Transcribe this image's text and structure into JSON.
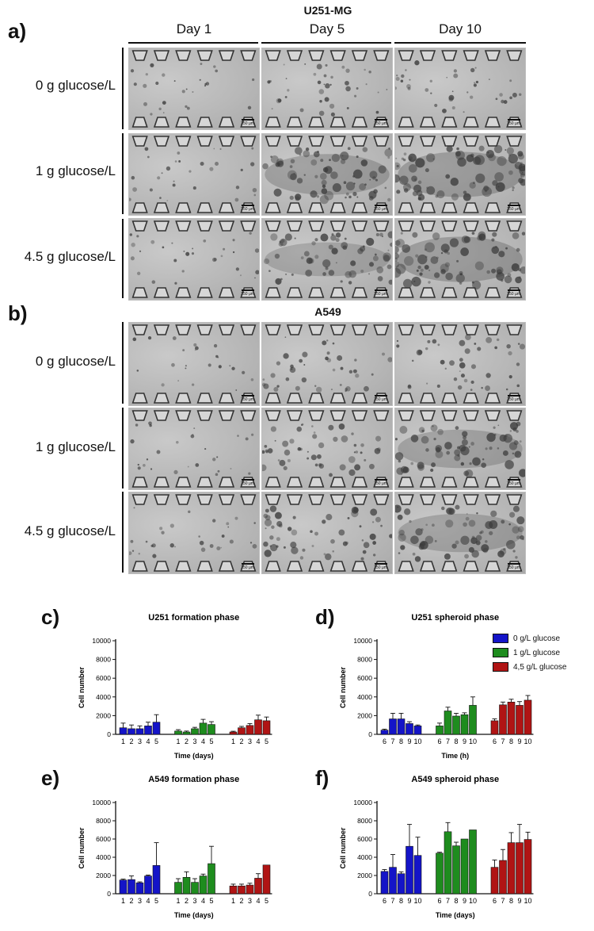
{
  "figure": {
    "panel_a": {
      "letter": "a)",
      "cell_line": "U251-MG",
      "days": [
        "Day 1",
        "Day 5",
        "Day 10"
      ],
      "conditions": [
        "0 g glucose/L",
        "1 g glucose/L",
        "4.5 g glucose/L"
      ],
      "scale_bar": "250 µm",
      "growth": [
        [
          0.15,
          0.35,
          0.35
        ],
        [
          0.2,
          0.9,
          1.0
        ],
        [
          0.2,
          0.75,
          1.0
        ]
      ]
    },
    "panel_b": {
      "letter": "b)",
      "cell_line": "A549",
      "conditions": [
        "0 g glucose/L",
        "1 g glucose/L",
        "4.5 g glucose/L"
      ],
      "scale_bar": "250 µm",
      "growth": [
        [
          0.1,
          0.4,
          0.45
        ],
        [
          0.15,
          0.55,
          0.85
        ],
        [
          0.2,
          0.6,
          0.85
        ]
      ]
    },
    "legend": [
      "0 g/L glucose",
      "1 g/L glucose",
      "4,5 g/L glucose"
    ],
    "colors": {
      "low": "#1414c8",
      "mid": "#1e8c1e",
      "high": "#b01414"
    }
  },
  "chart_data": [
    {
      "letter": "c)",
      "type": "bar",
      "title": "U251 formation phase",
      "xlabel": "Time (days)",
      "ylabel": "Cell number",
      "ylim": [
        0,
        10000
      ],
      "yticks": [
        "0",
        "2000",
        "4000",
        "6000",
        "8000",
        "10000"
      ],
      "groups": [
        {
          "name": "0 g/L glucose",
          "labels": [
            "1",
            "2",
            "3",
            "4",
            "5"
          ],
          "values": [
            700,
            600,
            600,
            900,
            1300
          ],
          "errors": [
            500,
            400,
            300,
            400,
            800
          ]
        },
        {
          "name": "1 g/L glucose",
          "labels": [
            "1",
            "2",
            "3",
            "4",
            "5"
          ],
          "values": [
            350,
            250,
            600,
            1200,
            1050
          ],
          "errors": [
            150,
            100,
            150,
            400,
            300
          ]
        },
        {
          "name": "4,5 g/L glucose",
          "labels": [
            "1",
            "2",
            "3",
            "4",
            "5"
          ],
          "values": [
            250,
            700,
            950,
            1550,
            1450
          ],
          "errors": [
            80,
            150,
            200,
            500,
            400
          ]
        }
      ]
    },
    {
      "letter": "d)",
      "type": "bar",
      "title": "U251 spheroid phase",
      "xlabel": "Time (h)",
      "ylabel": "Cell number",
      "ylim": [
        0,
        10000
      ],
      "yticks": [
        "0",
        "2000",
        "4000",
        "6000",
        "8000",
        "10000"
      ],
      "groups": [
        {
          "name": "0 g/L glucose",
          "labels": [
            "6",
            "7",
            "8",
            "9",
            "10"
          ],
          "values": [
            450,
            1650,
            1650,
            1150,
            900
          ],
          "errors": [
            100,
            600,
            600,
            200,
            100
          ]
        },
        {
          "name": "1 g/L glucose",
          "labels": [
            "6",
            "7",
            "8",
            "9",
            "10"
          ],
          "values": [
            900,
            2500,
            1950,
            2100,
            3100
          ],
          "errors": [
            300,
            400,
            300,
            200,
            900
          ]
        },
        {
          "name": "4,5 g/L glucose",
          "labels": [
            "6",
            "7",
            "8",
            "9",
            "10"
          ],
          "values": [
            1450,
            3150,
            3450,
            3100,
            3650
          ],
          "errors": [
            200,
            300,
            300,
            400,
            500
          ]
        }
      ]
    },
    {
      "letter": "e)",
      "type": "bar",
      "title": "A549 formation phase",
      "xlabel": "Time (days)",
      "ylabel": "Cell number",
      "ylim": [
        0,
        10000
      ],
      "yticks": [
        "0",
        "2000",
        "4000",
        "6000",
        "8000",
        "10000"
      ],
      "groups": [
        {
          "name": "0 g/L glucose",
          "labels": [
            "1",
            "2",
            "3",
            "4",
            "5"
          ],
          "values": [
            1500,
            1550,
            1200,
            1950,
            3100
          ],
          "errors": [
            100,
            400,
            100,
            100,
            2500
          ]
        },
        {
          "name": "1 g/L glucose",
          "labels": [
            "1",
            "2",
            "3",
            "4",
            "5"
          ],
          "values": [
            1250,
            1800,
            1250,
            1950,
            3300
          ],
          "errors": [
            400,
            600,
            400,
            200,
            1900
          ]
        },
        {
          "name": "4,5 g/L glucose",
          "labels": [
            "1",
            "2",
            "3",
            "4",
            "5"
          ],
          "values": [
            850,
            850,
            950,
            1700,
            3150
          ],
          "errors": [
            200,
            200,
            200,
            500,
            0
          ]
        }
      ]
    },
    {
      "letter": "f)",
      "type": "bar",
      "title": "A549 spheroid phase",
      "xlabel": "Time (days)",
      "ylabel": "Cell number",
      "ylim": [
        0,
        10000
      ],
      "yticks": [
        "0",
        "2000",
        "4000",
        "6000",
        "8000",
        "10000"
      ],
      "groups": [
        {
          "name": "0 g/L glucose",
          "labels": [
            "6",
            "7",
            "8",
            "9",
            "10"
          ],
          "values": [
            2450,
            2900,
            2200,
            5200,
            4200
          ],
          "errors": [
            200,
            1400,
            200,
            2400,
            2000
          ]
        },
        {
          "name": "1 g/L glucose",
          "labels": [
            "6",
            "7",
            "8",
            "9",
            "10"
          ],
          "values": [
            4450,
            6800,
            5250,
            6000,
            7000
          ],
          "errors": [
            100,
            1000,
            400,
            0,
            0
          ]
        },
        {
          "name": "4,5 g/L glucose",
          "labels": [
            "6",
            "7",
            "8",
            "9",
            "10"
          ],
          "values": [
            2900,
            3650,
            5600,
            5600,
            5950
          ],
          "errors": [
            800,
            1200,
            1100,
            2000,
            800
          ]
        }
      ]
    }
  ]
}
